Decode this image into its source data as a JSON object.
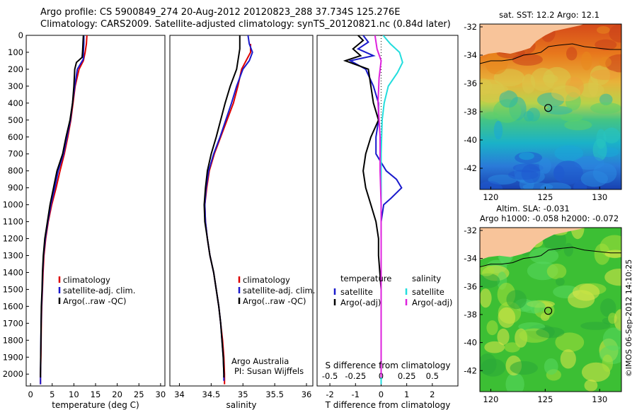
{
  "header": {
    "line1": "Argo profile: CS 5900849_274 20-Aug-2012 20120823_288 37.734S 125.276E",
    "line2": "Climatology: CARS2009. Satellite-adjusted climatology: synTS_20120821.nc (0.84d later)"
  },
  "side_label": "©IMOS 06-Sep-2012 14:10:25",
  "colors": {
    "climatology": "#dd0000",
    "satellite": "#1a1acc",
    "argo": "#000000",
    "salinity_satellite": "#22dddd",
    "salinity_argo": "#dd22dd",
    "land": "#f8c49a"
  },
  "chart_data": [
    {
      "type": "line",
      "name": "temperature-profile",
      "xlabel": "temperature (deg C)",
      "xlim": [
        -1,
        31
      ],
      "ylim": [
        2070,
        0
      ],
      "xticks": [
        0,
        5,
        10,
        15,
        20,
        25,
        30
      ],
      "yticks": [
        0,
        100,
        200,
        300,
        400,
        500,
        600,
        700,
        800,
        900,
        1000,
        1100,
        1200,
        1300,
        1400,
        1500,
        1600,
        1700,
        1800,
        1900,
        2000
      ],
      "legend": [
        "climatology",
        "satellite-adj. clim.",
        "Argo(..raw -QC)"
      ],
      "series": [
        {
          "name": "climatology",
          "color": "#dd0000",
          "points": [
            [
              13.0,
              0
            ],
            [
              12.9,
              50
            ],
            [
              12.6,
              100
            ],
            [
              12.2,
              150
            ],
            [
              11.2,
              200
            ],
            [
              10.3,
              300
            ],
            [
              9.8,
              400
            ],
            [
              9.3,
              500
            ],
            [
              8.6,
              600
            ],
            [
              7.8,
              700
            ],
            [
              6.8,
              800
            ],
            [
              5.9,
              900
            ],
            [
              4.9,
              1000
            ],
            [
              4.1,
              1100
            ],
            [
              3.5,
              1200
            ],
            [
              3.1,
              1300
            ],
            [
              2.9,
              1400
            ],
            [
              2.75,
              1500
            ],
            [
              2.6,
              1600
            ],
            [
              2.5,
              1700
            ],
            [
              2.45,
              1800
            ],
            [
              2.4,
              1900
            ],
            [
              2.3,
              2000
            ],
            [
              2.3,
              2060
            ]
          ]
        },
        {
          "name": "satellite-adj. clim.",
          "color": "#1a1acc",
          "points": [
            [
              12.3,
              0
            ],
            [
              12.3,
              50
            ],
            [
              12.2,
              100
            ],
            [
              12.2,
              140
            ],
            [
              10.8,
              200
            ],
            [
              10.2,
              300
            ],
            [
              9.7,
              400
            ],
            [
              9.2,
              500
            ],
            [
              8.4,
              600
            ],
            [
              7.6,
              700
            ],
            [
              6.4,
              800
            ],
            [
              5.6,
              900
            ],
            [
              4.7,
              1000
            ],
            [
              4.0,
              1100
            ],
            [
              3.4,
              1200
            ],
            [
              3.0,
              1300
            ],
            [
              2.8,
              1400
            ],
            [
              2.7,
              1500
            ],
            [
              2.55,
              1600
            ],
            [
              2.45,
              1700
            ],
            [
              2.4,
              1800
            ],
            [
              2.35,
              1900
            ],
            [
              2.3,
              2000
            ],
            [
              2.3,
              2060
            ]
          ]
        },
        {
          "name": "Argo(..raw -QC)",
          "color": "#000000",
          "points": [
            [
              12.2,
              0
            ],
            [
              12.1,
              50
            ],
            [
              12.0,
              100
            ],
            [
              11.9,
              130
            ],
            [
              10.6,
              160
            ],
            [
              10.2,
              200
            ],
            [
              10.0,
              300
            ],
            [
              9.7,
              400
            ],
            [
              9.1,
              500
            ],
            [
              8.2,
              600
            ],
            [
              7.4,
              700
            ],
            [
              6.1,
              800
            ],
            [
              5.3,
              900
            ],
            [
              4.5,
              1000
            ],
            [
              3.9,
              1100
            ],
            [
              3.3,
              1200
            ],
            [
              2.95,
              1300
            ],
            [
              2.75,
              1400
            ],
            [
              2.65,
              1500
            ],
            [
              2.5,
              1600
            ],
            [
              2.45,
              1700
            ],
            [
              2.4,
              1800
            ],
            [
              2.35,
              1900
            ],
            [
              2.3,
              2000
            ],
            [
              2.3,
              2020
            ]
          ]
        }
      ]
    },
    {
      "type": "line",
      "name": "salinity-profile",
      "xlabel": "salinity",
      "xlim": [
        33.85,
        36.1
      ],
      "ylim": [
        2070,
        0
      ],
      "xticks": [
        34,
        34.5,
        35,
        35.5,
        36
      ],
      "legend": [
        "climatology",
        "satellite-adj. clim.",
        "Argo(..raw -QC)"
      ],
      "annotation": [
        "Argo Australia",
        "PI: Susan Wijffels"
      ],
      "series": [
        {
          "name": "climatology",
          "color": "#dd0000",
          "points": [
            [
              35.12,
              50
            ],
            [
              35.12,
              100
            ],
            [
              35.05,
              150
            ],
            [
              34.98,
              200
            ],
            [
              34.92,
              300
            ],
            [
              34.85,
              400
            ],
            [
              34.75,
              500
            ],
            [
              34.65,
              600
            ],
            [
              34.55,
              700
            ],
            [
              34.47,
              800
            ],
            [
              34.43,
              900
            ],
            [
              34.4,
              1000
            ],
            [
              34.41,
              1100
            ],
            [
              34.44,
              1200
            ],
            [
              34.48,
              1300
            ],
            [
              34.54,
              1400
            ],
            [
              34.58,
              1500
            ],
            [
              34.62,
              1600
            ],
            [
              34.65,
              1700
            ],
            [
              34.68,
              1800
            ],
            [
              34.7,
              1900
            ],
            [
              34.71,
              2000
            ],
            [
              34.71,
              2060
            ]
          ]
        },
        {
          "name": "satellite-adj. clim.",
          "color": "#1a1acc",
          "points": [
            [
              35.08,
              0
            ],
            [
              35.1,
              50
            ],
            [
              35.15,
              100
            ],
            [
              35.1,
              150
            ],
            [
              35.0,
              200
            ],
            [
              34.9,
              300
            ],
            [
              34.82,
              400
            ],
            [
              34.73,
              500
            ],
            [
              34.64,
              600
            ],
            [
              34.54,
              700
            ],
            [
              34.46,
              800
            ],
            [
              34.42,
              900
            ],
            [
              34.4,
              1000
            ],
            [
              34.41,
              1100
            ],
            [
              34.44,
              1200
            ],
            [
              34.48,
              1300
            ],
            [
              34.54,
              1400
            ],
            [
              34.58,
              1500
            ],
            [
              34.62,
              1600
            ],
            [
              34.65,
              1700
            ],
            [
              34.67,
              1800
            ],
            [
              34.69,
              1900
            ],
            [
              34.7,
              2000
            ],
            [
              34.7,
              2040
            ]
          ]
        },
        {
          "name": "Argo(..raw -QC)",
          "color": "#000000",
          "points": [
            [
              34.95,
              0
            ],
            [
              34.95,
              80
            ],
            [
              34.9,
              200
            ],
            [
              34.8,
              300
            ],
            [
              34.72,
              400
            ],
            [
              34.65,
              500
            ],
            [
              34.58,
              600
            ],
            [
              34.5,
              700
            ],
            [
              34.44,
              800
            ],
            [
              34.41,
              900
            ],
            [
              34.39,
              1000
            ],
            [
              34.4,
              1100
            ],
            [
              34.44,
              1200
            ],
            [
              34.48,
              1300
            ],
            [
              34.54,
              1400
            ],
            [
              34.58,
              1500
            ],
            [
              34.62,
              1600
            ],
            [
              34.65,
              1700
            ],
            [
              34.67,
              1800
            ],
            [
              34.69,
              1900
            ],
            [
              34.7,
              2000
            ],
            [
              34.7,
              2020
            ]
          ]
        }
      ]
    },
    {
      "type": "line",
      "name": "difference-profile",
      "xlabel": "T difference from climatology",
      "top_axis_label": "S difference from climatology",
      "xlim": [
        -2.5,
        3
      ],
      "top_xlim": [
        -0.625,
        0.75
      ],
      "ylim": [
        2070,
        0
      ],
      "xticks": [
        -2,
        -1,
        0,
        1,
        2
      ],
      "top_xticks": [
        -0.5,
        -0.25,
        0,
        0.25,
        0.5
      ],
      "legend_temperature": [
        "temperature",
        "satellite",
        "Argo(-adj)"
      ],
      "legend_salinity": [
        "salinity",
        "satellite",
        "Argo(-adj)"
      ],
      "series": [
        {
          "name": "temperature satellite",
          "color": "#1a1acc",
          "points": [
            [
              -0.7,
              0
            ],
            [
              -0.5,
              40
            ],
            [
              -0.9,
              80
            ],
            [
              -0.3,
              120
            ],
            [
              -1.2,
              150
            ],
            [
              -0.6,
              200
            ],
            [
              -0.3,
              300
            ],
            [
              -0.1,
              400
            ],
            [
              -0.1,
              500
            ],
            [
              -0.2,
              600
            ],
            [
              -0.2,
              700
            ],
            [
              0.2,
              800
            ],
            [
              0.6,
              850
            ],
            [
              0.8,
              900
            ],
            [
              0.4,
              960
            ],
            [
              0.1,
              1000
            ],
            [
              0.0,
              1100
            ],
            [
              0.0,
              1300
            ],
            [
              0.0,
              1500
            ],
            [
              0.0,
              1800
            ],
            [
              0.0,
              2060
            ]
          ]
        },
        {
          "name": "temperature Argo(-adj)",
          "color": "#000000",
          "points": [
            [
              -0.9,
              0
            ],
            [
              -0.7,
              30
            ],
            [
              -1.1,
              80
            ],
            [
              -0.8,
              120
            ],
            [
              -1.4,
              150
            ],
            [
              -0.5,
              200
            ],
            [
              -0.4,
              300
            ],
            [
              -0.3,
              400
            ],
            [
              -0.1,
              500
            ],
            [
              -0.4,
              600
            ],
            [
              -0.6,
              700
            ],
            [
              -0.7,
              800
            ],
            [
              -0.6,
              900
            ],
            [
              -0.4,
              1000
            ],
            [
              -0.2,
              1100
            ],
            [
              -0.1,
              1200
            ],
            [
              -0.1,
              1300
            ],
            [
              0.0,
              1500
            ],
            [
              0.0,
              1800
            ],
            [
              0.0,
              2020
            ]
          ]
        },
        {
          "name": "salinity satellite",
          "color": "#22dddd",
          "points": [
            [
              0.02,
              0
            ],
            [
              0.09,
              50
            ],
            [
              0.18,
              100
            ],
            [
              0.21,
              160
            ],
            [
              0.16,
              220
            ],
            [
              0.07,
              300
            ],
            [
              0.03,
              400
            ],
            [
              0.01,
              500
            ],
            [
              0.0,
              700
            ],
            [
              0.0,
              1000
            ],
            [
              0.0,
              1500
            ],
            [
              0.0,
              2060
            ]
          ]
        },
        {
          "name": "salinity Argo(-adj)",
          "color": "#dd22dd",
          "points": [
            [
              -0.06,
              0
            ],
            [
              -0.04,
              80
            ],
            [
              0.0,
              150
            ],
            [
              -0.02,
              250
            ],
            [
              -0.03,
              400
            ],
            [
              -0.02,
              500
            ],
            [
              -0.01,
              600
            ],
            [
              -0.01,
              800
            ],
            [
              0.0,
              1000
            ],
            [
              0.0,
              1500
            ],
            [
              0.0,
              2020
            ]
          ]
        }
      ]
    },
    {
      "type": "heatmap",
      "name": "sst-map",
      "title": "sat. SST: 12.2  Argo: 12.1",
      "xlim": [
        119,
        132
      ],
      "ylim": [
        -43.5,
        -31.8
      ],
      "xticks": [
        120,
        125,
        130
      ],
      "yticks": [
        -32,
        -34,
        -36,
        -38,
        -40,
        -42
      ],
      "argo_position": [
        125.276,
        -37.734
      ]
    },
    {
      "type": "heatmap",
      "name": "sla-map",
      "title": "Altim. SLA: -0.031",
      "subtitle": "Argo h1000: -0.058  h2000: -0.072",
      "xlim": [
        119,
        132
      ],
      "ylim": [
        -43.5,
        -31.8
      ],
      "xticks": [
        120,
        125,
        130
      ],
      "yticks": [
        -32,
        -34,
        -36,
        -38,
        -40,
        -42
      ],
      "argo_position": [
        125.276,
        -37.734
      ]
    }
  ]
}
